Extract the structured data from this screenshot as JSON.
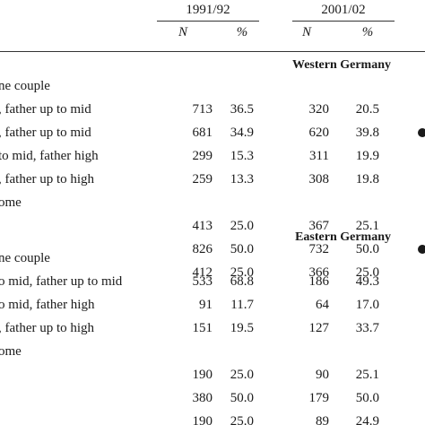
{
  "periods": [
    "1991/92",
    "2001/02"
  ],
  "col_headers": [
    "N",
    "%",
    "N",
    "%"
  ],
  "sections": [
    {
      "title": "Western Germany",
      "groups": [
        {
          "label": "ne couple",
          "rows": [
            {
              "label": ", father up to mid",
              "values": [
                "713",
                "36.5",
                "320",
                "20.5"
              ]
            },
            {
              "label": ", father up to mid",
              "values": [
                "681",
                "34.9",
                "620",
                "39.8"
              ]
            },
            {
              "label": "to mid, father high",
              "values": [
                "299",
                "15.3",
                "311",
                "19.9"
              ]
            },
            {
              "label": ", father up to high",
              "values": [
                "259",
                "13.3",
                "308",
                "19.8"
              ]
            }
          ]
        },
        {
          "label": "ome",
          "rows": [
            {
              "label": "",
              "values": [
                "413",
                "25.0",
                "367",
                "25.1"
              ]
            },
            {
              "label": "",
              "values": [
                "826",
                "50.0",
                "732",
                "50.0"
              ]
            },
            {
              "label": "",
              "values": [
                "412",
                "25.0",
                "366",
                "25.0"
              ]
            }
          ]
        }
      ]
    },
    {
      "title": "Eastern Germany",
      "groups": [
        {
          "label": "ne couple",
          "rows": [
            {
              "label": "o mid, father up to mid",
              "values": [
                "533",
                "68.8",
                "186",
                "49.3"
              ]
            },
            {
              "label": "o mid, father high",
              "values": [
                "91",
                "11.7",
                "64",
                "17.0"
              ]
            },
            {
              "label": ", father up to high",
              "values": [
                "151",
                "19.5",
                "127",
                "33.7"
              ]
            }
          ]
        },
        {
          "label": "ome",
          "rows": [
            {
              "label": "",
              "values": [
                "190",
                "25.0",
                "90",
                "25.1"
              ]
            },
            {
              "label": "",
              "values": [
                "380",
                "50.0",
                "179",
                "50.0"
              ]
            },
            {
              "label": "",
              "values": [
                "190",
                "25.0",
                "89",
                "24.9"
              ]
            }
          ]
        }
      ]
    }
  ]
}
